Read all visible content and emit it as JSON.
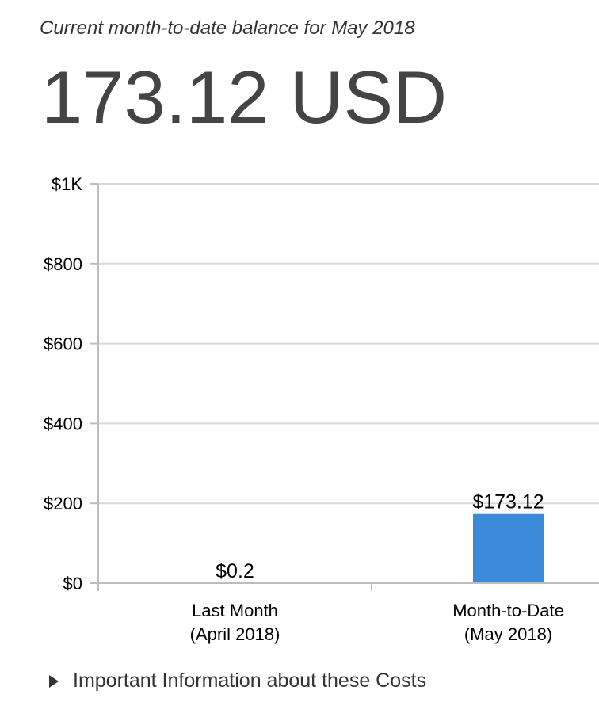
{
  "header": {
    "subtitle": "Current month-to-date balance for May 2018",
    "balance": "173.12 USD"
  },
  "footer": {
    "important_info_label": "Important Information about these Costs"
  },
  "colors": {
    "bar": "#3b8ad9",
    "gridline": "#d9d9d9",
    "axis": "#bdbdbd"
  },
  "chart_data": {
    "type": "bar",
    "categories": [
      [
        "Last Month",
        "(April 2018)"
      ],
      [
        "Month-to-Date",
        "(May 2018)"
      ]
    ],
    "values": [
      0.2,
      173.12
    ],
    "data_labels": [
      "$0.2",
      "$173.12"
    ],
    "ylim": [
      0,
      1000
    ],
    "yticks": [
      0,
      200,
      400,
      600,
      800,
      1000
    ],
    "ytick_labels": [
      "$0",
      "$200",
      "$400",
      "$600",
      "$800",
      "$1K"
    ],
    "grid": true,
    "title": "",
    "xlabel": "",
    "ylabel": ""
  }
}
